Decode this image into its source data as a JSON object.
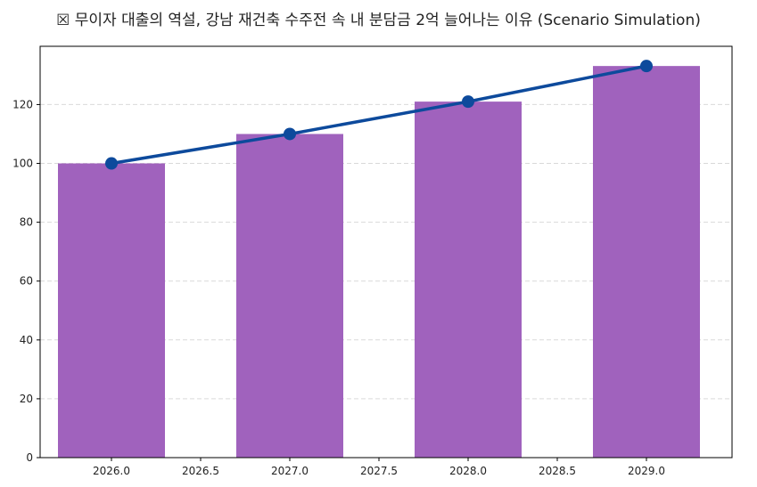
{
  "chart_data": {
    "type": "bar",
    "title": "☒ 무이자 대출의 역설, 강남 재건축 수주전 속 내 분담금 2억 늘어나는 이유 (Scenario Simulation)",
    "xlabel": "",
    "ylabel": "",
    "x": [
      2026,
      2027,
      2028,
      2029
    ],
    "series": [
      {
        "type": "bar",
        "values": [
          100,
          110,
          121,
          133.1
        ]
      },
      {
        "type": "line",
        "values": [
          100,
          110,
          121,
          133.1
        ]
      }
    ],
    "xlim": [
      2025.6,
      2029.48
    ],
    "ylim": [
      0,
      139.8
    ],
    "xticks": [
      2026.0,
      2026.5,
      2027.0,
      2027.5,
      2028.0,
      2028.5,
      2029.0
    ],
    "xtick_labels": [
      "2026.0",
      "2026.5",
      "2027.0",
      "2027.5",
      "2028.0",
      "2028.5",
      "2029.0"
    ],
    "yticks": [
      0,
      20,
      40,
      60,
      80,
      100,
      120
    ],
    "ytick_labels": [
      "0",
      "20",
      "40",
      "60",
      "80",
      "100",
      "120"
    ],
    "bar_width": 0.6,
    "grid": "y-dashed",
    "colors": {
      "bar": "#a062bd",
      "line": "#0d4a9c",
      "grid": "#d9d9d9",
      "axis": "#000000"
    }
  }
}
